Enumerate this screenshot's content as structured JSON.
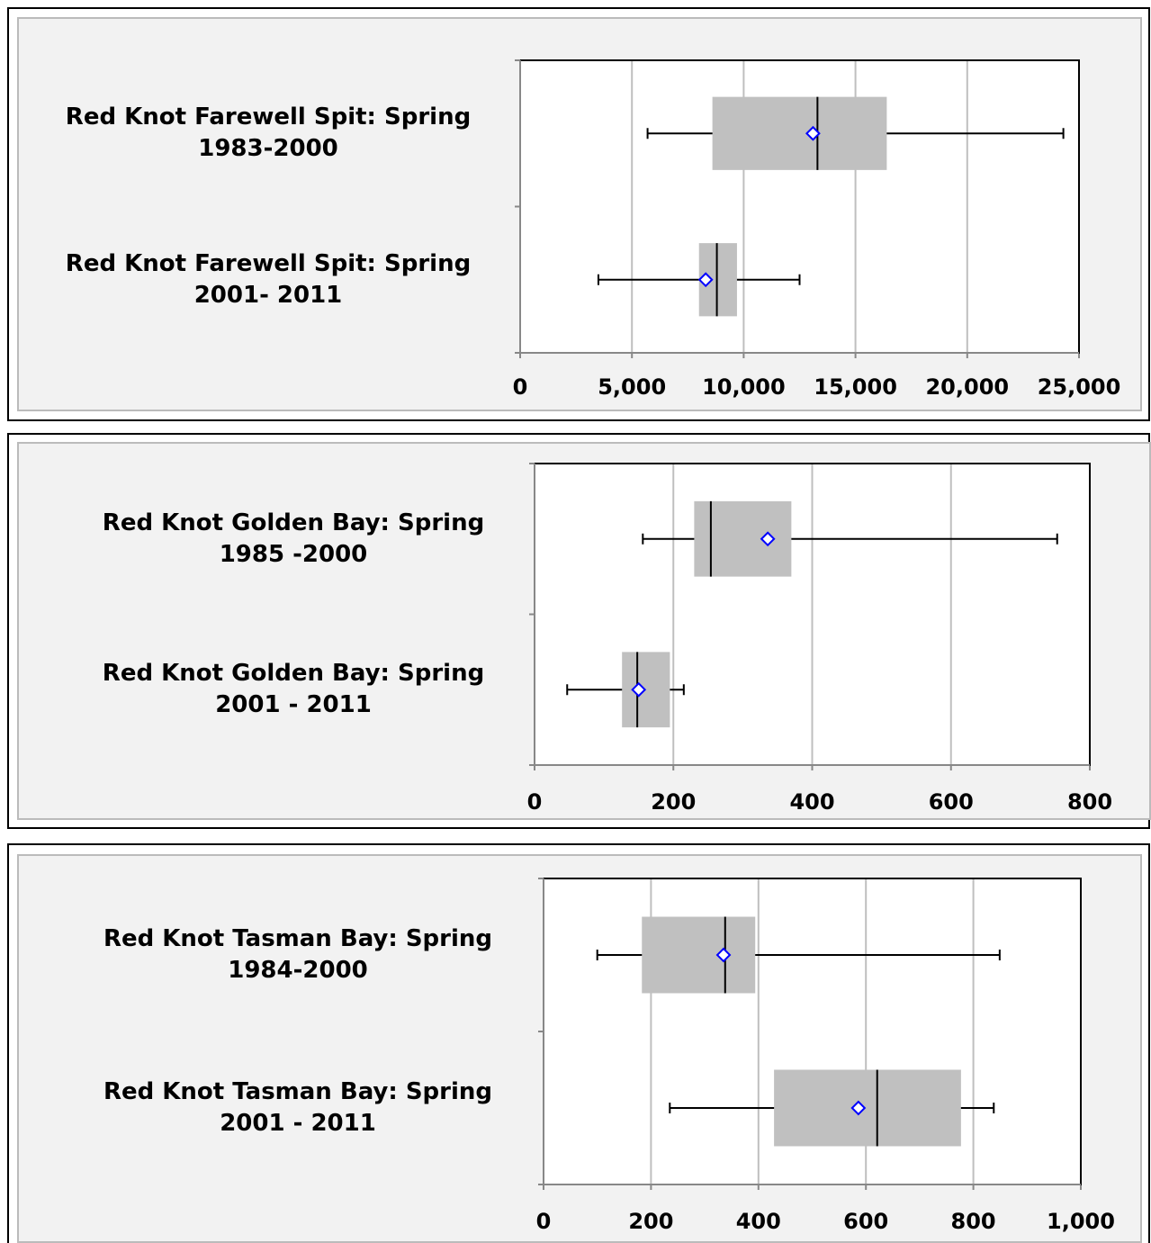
{
  "chart_data": [
    {
      "type": "box",
      "categories": [
        "Red Knot Farewell Spit: Spring\n1983-2000",
        "Red Knot Farewell Spit: Spring\n2001- 2011"
      ],
      "boxes": [
        {
          "min": 5700,
          "q1": 8600,
          "median": 13300,
          "q3": 16400,
          "max": 24300,
          "mean": 13100
        },
        {
          "min": 3500,
          "q1": 8000,
          "median": 8800,
          "q3": 9700,
          "max": 12500,
          "mean": 8300
        }
      ],
      "color": "#c0c0c0",
      "mean_color": "#0000ff",
      "xlim": [
        0,
        25000
      ],
      "xticks": [
        0,
        {
          "value": 5000,
          "label": "5,000"
        },
        {
          "value": 10000,
          "label": "10,000"
        },
        {
          "value": 15000,
          "label": "15,000"
        },
        {
          "value": 20000,
          "label": "20,000"
        },
        {
          "value": 25000,
          "label": "25,000"
        }
      ],
      "grid": true
    },
    {
      "type": "box",
      "categories": [
        "Red Knot Golden Bay: Spring\n1985 -2000",
        "Red Knot Golden Bay: Spring\n2001 - 2011"
      ],
      "boxes": [
        {
          "min": 156,
          "q1": 230,
          "median": 254,
          "q3": 370,
          "max": 753,
          "mean": 336
        },
        {
          "min": 47,
          "q1": 126,
          "median": 148,
          "q3": 195,
          "max": 215,
          "mean": 150
        }
      ],
      "color": "#c0c0c0",
      "mean_color": "#0000ff",
      "xlim": [
        0,
        800
      ],
      "xticks": [
        0,
        200,
        400,
        600,
        800
      ],
      "grid": true
    },
    {
      "type": "box",
      "categories": [
        "Red Knot Tasman Bay: Spring\n1984-2000",
        "Red Knot Tasman Bay: Spring\n2001 - 2011"
      ],
      "boxes": [
        {
          "min": 100,
          "q1": 183,
          "median": 338,
          "q3": 394,
          "max": 849,
          "mean": 335
        },
        {
          "min": 235,
          "q1": 429,
          "median": 621,
          "q3": 777,
          "max": 838,
          "mean": 586
        }
      ],
      "color": "#c0c0c0",
      "mean_color": "#0000ff",
      "xlim": [
        0,
        1000
      ],
      "xticks": [
        0,
        200,
        400,
        600,
        800,
        {
          "value": 1000,
          "label": "1,000"
        }
      ],
      "grid": true
    }
  ]
}
